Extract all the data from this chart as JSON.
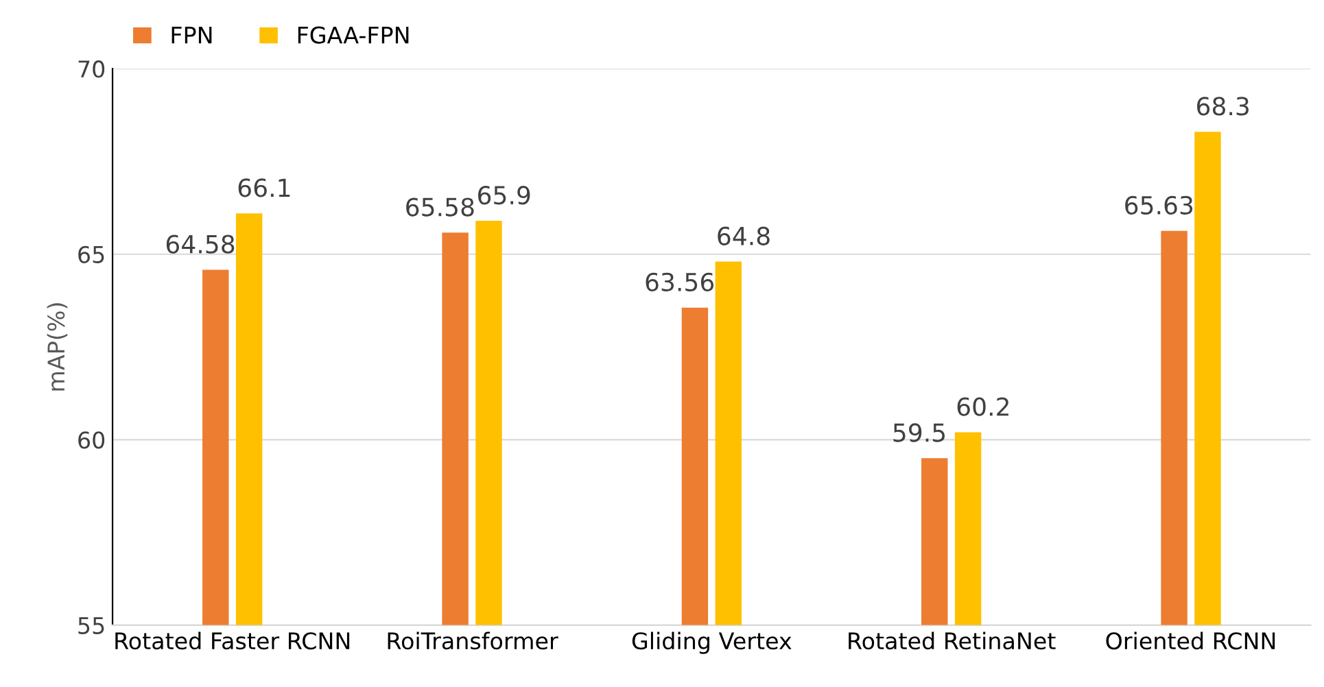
{
  "chart_data": {
    "type": "bar",
    "ylabel": "mAP(%)",
    "categories": [
      "Rotated Faster RCNN",
      "RoiTransformer",
      "Gliding Vertex",
      "Rotated RetinaNet",
      "Oriented RCNN"
    ],
    "series": [
      {
        "name": "FPN",
        "color": "#ed7d31",
        "values": [
          64.58,
          65.58,
          63.56,
          59.5,
          65.63
        ]
      },
      {
        "name": "FGAA-FPN",
        "color": "#ffc000",
        "values": [
          66.1,
          65.9,
          64.8,
          60.2,
          68.3
        ]
      }
    ],
    "ylim": [
      55,
      70
    ],
    "yticks": [
      55,
      60,
      65,
      70
    ],
    "grid": "y",
    "legend": "top left",
    "data_labels": true
  }
}
